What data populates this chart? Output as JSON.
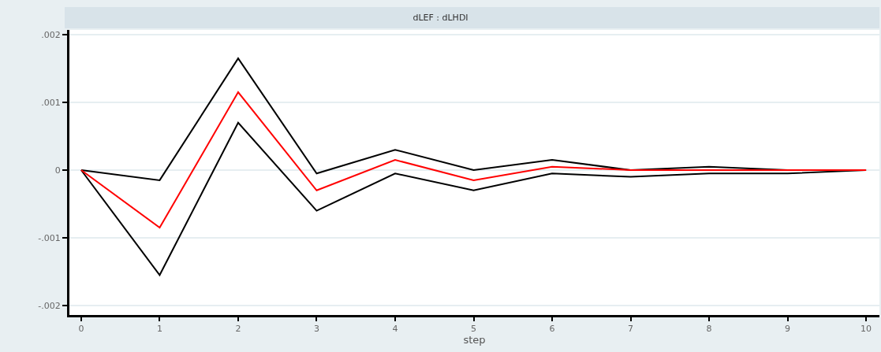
{
  "chart_data": {
    "type": "line",
    "title": "dLEF : dLHDI",
    "xlabel": "step",
    "x": [
      0,
      1,
      2,
      3,
      4,
      5,
      6,
      7,
      8,
      9,
      10
    ],
    "series": [
      {
        "color": "#000000",
        "values": [
          0,
          -0.00015,
          0.00165,
          -5e-05,
          0.0003,
          0,
          0.00015,
          0,
          5e-05,
          0,
          0
        ]
      },
      {
        "color": "#000000",
        "values": [
          0,
          -0.00155,
          0.0007,
          -0.0006,
          -5e-05,
          -0.0003,
          -5e-05,
          -0.0001,
          -5e-05,
          -5e-05,
          0
        ]
      },
      {
        "color": "#ff0000",
        "values": [
          0,
          -0.00085,
          0.00115,
          -0.0003,
          0.00015,
          -0.00015,
          5e-05,
          0,
          0,
          0,
          0
        ]
      }
    ],
    "xlim": [
      -0.15,
      10.17
    ],
    "xticks": [
      0,
      1,
      2,
      3,
      4,
      5,
      6,
      7,
      8,
      9,
      10
    ],
    "ylim": [
      -0.00214,
      0.00207
    ],
    "yticks": [
      {
        "value": 0.002,
        "label": ".002"
      },
      {
        "value": 0.001,
        "label": ".001"
      },
      0,
      {
        "value": -0.001,
        "label": "-.001"
      },
      {
        "value": -0.002,
        "label": "-.002"
      }
    ],
    "grid": "y",
    "marker": "none",
    "line_style": "solid"
  }
}
